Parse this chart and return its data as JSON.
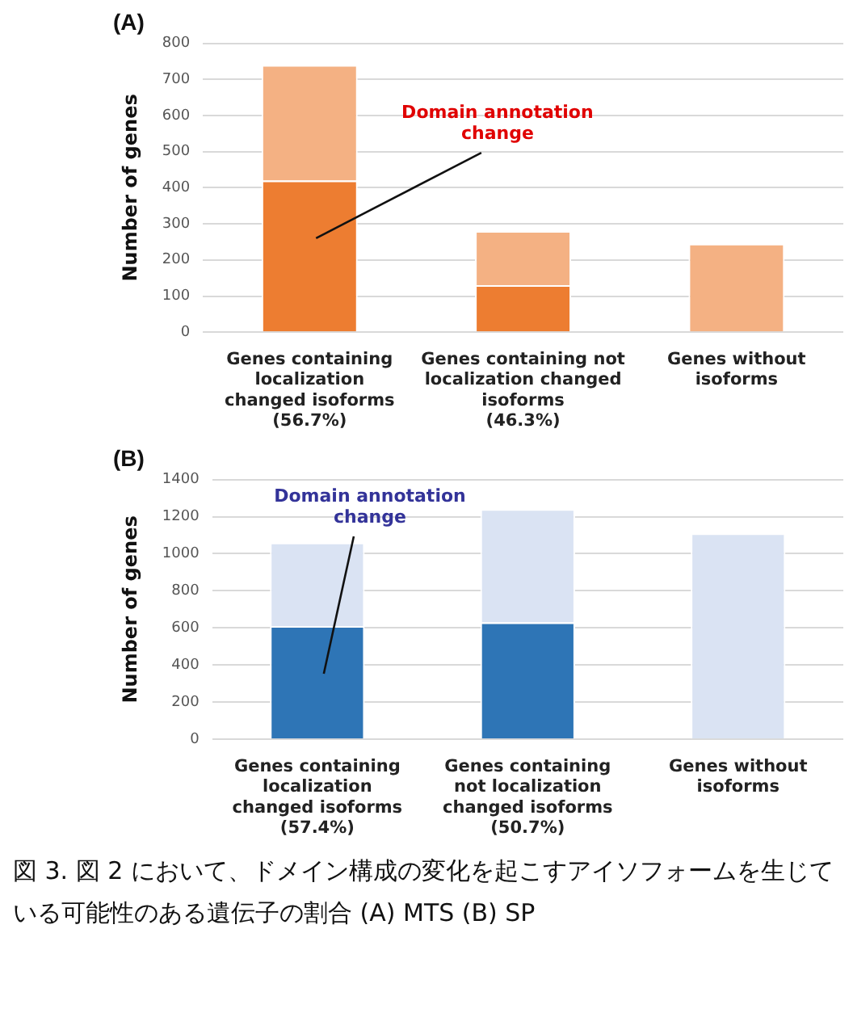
{
  "chart_data": [
    {
      "type": "bar",
      "title": "(A)",
      "ylabel": "Number of genes",
      "stacked": true,
      "grid": "y",
      "legend": false,
      "categories": [
        "Genes containing\nlocalization\nchanged isoforms\n(56.7%)",
        "Genes containing not\nlocalization changed\nisoforms\n(46.3%)",
        "Genes without\nisoforms"
      ],
      "series": [
        {
          "color": "#ed7d31",
          "values": [
            420,
            130,
            0
          ]
        },
        {
          "color": "#f4b183",
          "values": [
            320,
            150,
            245
          ]
        }
      ],
      "ylim": [
        0,
        800
      ],
      "yticks": [
        0,
        100,
        200,
        300,
        400,
        500,
        600,
        700,
        800
      ],
      "annotations": [
        "Domain annotation\nchange"
      ]
    },
    {
      "type": "bar",
      "title": "(B)",
      "ylabel": "Number of genes",
      "stacked": true,
      "grid": "y",
      "legend": false,
      "categories": [
        "Genes containing\nlocalization\nchanged isoforms\n(57.4%)",
        "Genes containing\nnot localization\nchanged isoforms\n(50.7%)",
        "Genes without\nisoforms"
      ],
      "series": [
        {
          "color": "#2e75b6",
          "values": [
            610,
            630,
            0
          ]
        },
        {
          "color": "#dae3f3",
          "values": [
            450,
            610,
            1110
          ]
        }
      ],
      "ylim": [
        0,
        1400
      ],
      "yticks": [
        0,
        200,
        400,
        600,
        800,
        1000,
        1200,
        1400
      ],
      "annotations": [
        "Domain annotation\nchange",
        "図 3. 図 2 において、ドメイン構成の変化を起こすアイソフォームを生じている可能性のある遺伝子の割合 (A) MTS (B) SP"
      ]
    }
  ]
}
